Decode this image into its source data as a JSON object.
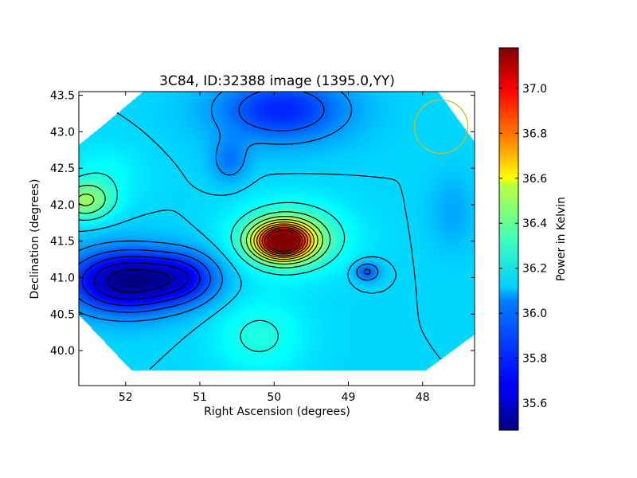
{
  "chart_data": {
    "type": "heatmap",
    "title": "3C84, ID:32388 image (1395.0,YY)",
    "xlabel": "Right Ascension (degrees)",
    "ylabel": "Declination (degrees)",
    "xlim": [
      52.63,
      47.3
    ],
    "ylim": [
      39.52,
      43.55
    ],
    "x_ticks": [
      {
        "value": 52,
        "label": "52"
      },
      {
        "value": 51,
        "label": "51"
      },
      {
        "value": 50,
        "label": "50"
      },
      {
        "value": 49,
        "label": "49"
      },
      {
        "value": 48,
        "label": "48"
      }
    ],
    "y_ticks": [
      {
        "value": 40.0,
        "label": "40.0"
      },
      {
        "value": 40.5,
        "label": "40.5"
      },
      {
        "value": 41.0,
        "label": "41.0"
      },
      {
        "value": 41.5,
        "label": "41.5"
      },
      {
        "value": 42.0,
        "label": "42.0"
      },
      {
        "value": 42.5,
        "label": "42.5"
      },
      {
        "value": 43.0,
        "label": "43.0"
      },
      {
        "value": 43.5,
        "label": "43.5"
      }
    ],
    "colorbar": {
      "label": "Power in Kelvin",
      "range": [
        35.48,
        37.18
      ],
      "colormap": "jet",
      "ticks": [
        {
          "value": 35.6,
          "label": "35.6"
        },
        {
          "value": 35.8,
          "label": "35.8"
        },
        {
          "value": 36.0,
          "label": "36.0"
        },
        {
          "value": 36.2,
          "label": "36.2"
        },
        {
          "value": 36.4,
          "label": "36.4"
        },
        {
          "value": 36.6,
          "label": "36.6"
        },
        {
          "value": 36.8,
          "label": "36.8"
        },
        {
          "value": 37.0,
          "label": "37.0"
        }
      ]
    },
    "features": [
      {
        "name": "peak",
        "ra": 49.88,
        "dec": 41.5,
        "value": 37.15
      },
      {
        "name": "minimum",
        "ra": 52.0,
        "dec": 40.95,
        "value": 35.5
      },
      {
        "name": "low-north",
        "ra": 49.9,
        "dec": 43.3,
        "value": 35.75
      },
      {
        "name": "low-east",
        "ra": 48.75,
        "dec": 41.08,
        "value": 35.82
      },
      {
        "name": "high-west",
        "ra": 52.55,
        "dec": 42.05,
        "value": 36.35
      }
    ],
    "beam_circle": {
      "ra": 47.75,
      "dec": 43.07,
      "radius_deg": 0.36,
      "color": "#c8c020"
    },
    "grid": false
  }
}
